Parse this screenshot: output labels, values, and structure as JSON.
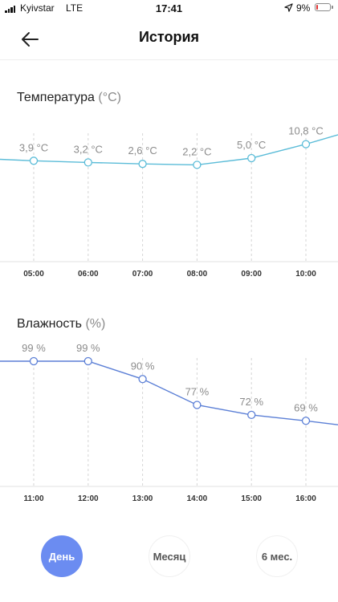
{
  "status_bar": {
    "carrier": "Kyivstar",
    "network": "LTE",
    "time": "17:41",
    "battery_percent": "9%",
    "battery_color": "#e03131"
  },
  "header": {
    "title": "История",
    "back_icon": "arrow-left-icon"
  },
  "temperature": {
    "title": "Температура",
    "unit": "(°C)",
    "line_color": "#5bbcd8",
    "chart_data": {
      "type": "line",
      "x": [
        "05:00",
        "06:00",
        "07:00",
        "08:00",
        "09:00",
        "10:00"
      ],
      "values": [
        3.9,
        3.2,
        2.6,
        2.2,
        5.0,
        10.8
      ],
      "labels": [
        "3,9 °C",
        "3,2 °C",
        "2,6 °C",
        "2,2 °C",
        "5,0 °C",
        "10,8 °C"
      ],
      "edge_left": 4.5,
      "edge_right": 14.7,
      "ylim": [
        -38,
        14
      ]
    }
  },
  "humidity": {
    "title": "Влажность",
    "unit": "(%)",
    "line_color": "#5b7fd6",
    "chart_data": {
      "type": "line",
      "x": [
        "11:00",
        "12:00",
        "13:00",
        "14:00",
        "15:00",
        "16:00"
      ],
      "values": [
        99,
        99,
        90,
        77,
        72,
        69
      ],
      "labels": [
        "99 %",
        "99 %",
        "90 %",
        "77 %",
        "72 %",
        "69 %"
      ],
      "edge_left": 99,
      "edge_right": 67,
      "ylim": [
        36,
        99
      ]
    }
  },
  "tabs": [
    {
      "label": "День",
      "active": true
    },
    {
      "label": "Месяц",
      "active": false
    },
    {
      "label": "6 мес.",
      "active": false
    }
  ]
}
